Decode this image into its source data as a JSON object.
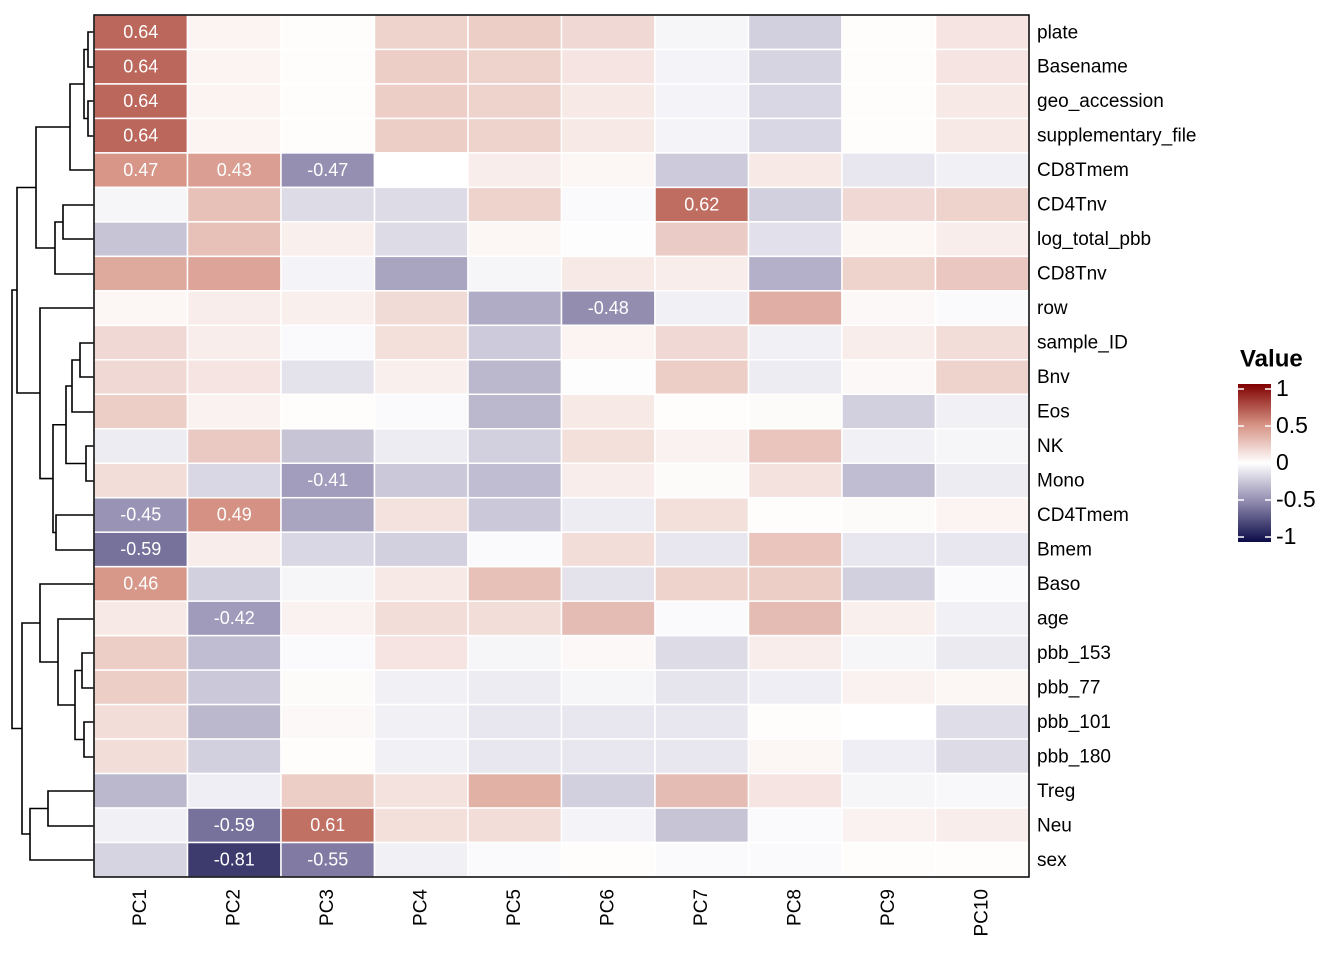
{
  "chart_data": {
    "type": "heatmap",
    "rows": [
      "plate",
      "Basename",
      "geo_accession",
      "supplementary_file",
      "CD8Tmem",
      "CD4Tnv",
      "log_total_pbb",
      "CD8Tnv",
      "row",
      "sample_ID",
      "Bnv",
      "Eos",
      "NK",
      "Mono",
      "CD4Tmem",
      "Bmem",
      "Baso",
      "age",
      "pbb_153",
      "pbb_77",
      "pbb_101",
      "pbb_180",
      "Treg",
      "Neu",
      "sex"
    ],
    "columns": [
      "PC1",
      "PC2",
      "PC3",
      "PC4",
      "PC5",
      "PC6",
      "PC7",
      "PC8",
      "PC9",
      "PC10"
    ],
    "values": [
      [
        0.64,
        0.05,
        0.01,
        0.2,
        0.22,
        0.17,
        -0.04,
        -0.2,
        0.01,
        0.12
      ],
      [
        0.64,
        0.05,
        0.01,
        0.22,
        0.2,
        0.12,
        -0.05,
        -0.18,
        0.01,
        0.12
      ],
      [
        0.64,
        0.05,
        0.01,
        0.22,
        0.2,
        0.1,
        -0.05,
        -0.17,
        0.01,
        0.1
      ],
      [
        0.64,
        0.05,
        0.01,
        0.22,
        0.2,
        0.1,
        -0.05,
        -0.17,
        0.01,
        0.1
      ],
      [
        0.47,
        0.43,
        -0.47,
        0,
        0.08,
        0.04,
        -0.22,
        0.1,
        -0.1,
        -0.06
      ],
      [
        -0.04,
        0.28,
        -0.15,
        -0.15,
        0.2,
        -0.02,
        0.62,
        -0.2,
        0.17,
        0.2
      ],
      [
        -0.25,
        0.28,
        0.07,
        -0.15,
        0.04,
        -0.01,
        0.23,
        -0.13,
        0.04,
        0.08
      ],
      [
        0.38,
        0.4,
        -0.05,
        -0.38,
        -0.04,
        0.1,
        0.08,
        -0.33,
        0.2,
        0.25
      ],
      [
        0.04,
        0.08,
        0.07,
        0.16,
        -0.35,
        -0.48,
        -0.06,
        0.36,
        0.03,
        -0.02
      ],
      [
        0.17,
        0.08,
        -0.02,
        0.14,
        -0.22,
        0.05,
        0.17,
        -0.06,
        0.08,
        0.15
      ],
      [
        0.17,
        0.12,
        -0.12,
        0.07,
        -0.3,
        -0.01,
        0.22,
        -0.08,
        0.03,
        0.2
      ],
      [
        0.22,
        0.06,
        0.01,
        -0.02,
        -0.3,
        0.1,
        0.01,
        0.02,
        -0.2,
        -0.06
      ],
      [
        -0.08,
        0.24,
        -0.25,
        -0.08,
        -0.2,
        0.14,
        0.06,
        0.26,
        -0.06,
        -0.04
      ],
      [
        0.15,
        -0.17,
        -0.41,
        -0.23,
        -0.28,
        0.08,
        0.02,
        0.13,
        -0.28,
        -0.08
      ],
      [
        -0.45,
        0.49,
        -0.38,
        0.13,
        -0.23,
        -0.08,
        0.14,
        0.01,
        0.02,
        0.05
      ],
      [
        -0.59,
        0.08,
        -0.17,
        -0.2,
        -0.02,
        0.15,
        -0.1,
        0.26,
        -0.1,
        -0.1
      ],
      [
        0.46,
        -0.2,
        -0.04,
        0.1,
        0.28,
        -0.12,
        0.2,
        0.22,
        -0.2,
        -0.02
      ],
      [
        0.1,
        -0.42,
        0.06,
        0.15,
        0.15,
        0.3,
        -0.02,
        0.3,
        0.07,
        -0.06
      ],
      [
        0.22,
        -0.28,
        -0.02,
        0.12,
        -0.04,
        0.03,
        -0.15,
        0.08,
        -0.04,
        -0.09
      ],
      [
        0.22,
        -0.23,
        0.02,
        -0.06,
        -0.08,
        -0.04,
        -0.11,
        -0.07,
        0.06,
        0.04
      ],
      [
        0.15,
        -0.3,
        0.03,
        -0.06,
        -0.1,
        -0.1,
        -0.1,
        0.01,
        0,
        -0.14
      ],
      [
        0.15,
        -0.2,
        0.01,
        -0.06,
        -0.1,
        -0.1,
        -0.1,
        0.04,
        -0.07,
        -0.15
      ],
      [
        -0.3,
        -0.07,
        0.22,
        0.13,
        0.35,
        -0.2,
        0.3,
        0.12,
        -0.04,
        -0.03
      ],
      [
        -0.06,
        -0.59,
        0.61,
        0.14,
        0.15,
        -0.05,
        -0.25,
        -0.02,
        0.06,
        0.08
      ],
      [
        -0.18,
        -0.81,
        -0.55,
        -0.06,
        -0.02,
        0.01,
        -0.02,
        -0.02,
        0.01,
        0.01
      ]
    ],
    "value_labels": [
      [
        "0.64",
        null,
        null,
        null,
        null,
        null,
        null,
        null,
        null,
        null
      ],
      [
        "0.64",
        null,
        null,
        null,
        null,
        null,
        null,
        null,
        null,
        null
      ],
      [
        "0.64",
        null,
        null,
        null,
        null,
        null,
        null,
        null,
        null,
        null
      ],
      [
        "0.64",
        null,
        null,
        null,
        null,
        null,
        null,
        null,
        null,
        null
      ],
      [
        "0.47",
        "0.43",
        "-0.47",
        null,
        null,
        null,
        null,
        null,
        null,
        null
      ],
      [
        null,
        null,
        null,
        null,
        null,
        null,
        "0.62",
        null,
        null,
        null
      ],
      [
        null,
        null,
        null,
        null,
        null,
        null,
        null,
        null,
        null,
        null
      ],
      [
        null,
        null,
        null,
        null,
        null,
        null,
        null,
        null,
        null,
        null
      ],
      [
        null,
        null,
        null,
        null,
        null,
        "-0.48",
        null,
        null,
        null,
        null
      ],
      [
        null,
        null,
        null,
        null,
        null,
        null,
        null,
        null,
        null,
        null
      ],
      [
        null,
        null,
        null,
        null,
        null,
        null,
        null,
        null,
        null,
        null
      ],
      [
        null,
        null,
        null,
        null,
        null,
        null,
        null,
        null,
        null,
        null
      ],
      [
        null,
        null,
        null,
        null,
        null,
        null,
        null,
        null,
        null,
        null
      ],
      [
        null,
        null,
        "-0.41",
        null,
        null,
        null,
        null,
        null,
        null,
        null
      ],
      [
        "-0.45",
        "0.49",
        null,
        null,
        null,
        null,
        null,
        null,
        null,
        null
      ],
      [
        "-0.59",
        null,
        null,
        null,
        null,
        null,
        null,
        null,
        null,
        null
      ],
      [
        "0.46",
        null,
        null,
        null,
        null,
        null,
        null,
        null,
        null,
        null
      ],
      [
        null,
        "-0.42",
        null,
        null,
        null,
        null,
        null,
        null,
        null,
        null
      ],
      [
        null,
        null,
        null,
        null,
        null,
        null,
        null,
        null,
        null,
        null
      ],
      [
        null,
        null,
        null,
        null,
        null,
        null,
        null,
        null,
        null,
        null
      ],
      [
        null,
        null,
        null,
        null,
        null,
        null,
        null,
        null,
        null,
        null
      ],
      [
        null,
        null,
        null,
        null,
        null,
        null,
        null,
        null,
        null,
        null
      ],
      [
        null,
        null,
        null,
        null,
        null,
        null,
        null,
        null,
        null,
        null
      ],
      [
        null,
        "-0.59",
        "0.61",
        null,
        null,
        null,
        null,
        null,
        null,
        null
      ],
      [
        null,
        "-0.81",
        "-0.55",
        null,
        null,
        null,
        null,
        null,
        null,
        null
      ]
    ],
    "legend_title": "Value",
    "clim": [
      -1,
      1
    ],
    "cticks": [
      -1,
      -0.5,
      0,
      0.5,
      1
    ],
    "color_stops": [
      [
        -1,
        "#0b0b47"
      ],
      [
        -0.5,
        "#8e88ad"
      ],
      [
        0,
        "#ffffff"
      ],
      [
        0.5,
        "#d48f80"
      ],
      [
        1,
        "#7f0000"
      ]
    ]
  }
}
